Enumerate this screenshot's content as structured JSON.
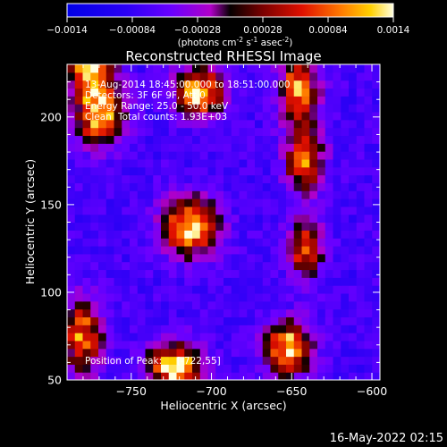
{
  "colorbar": {
    "ticks": [
      "-0.0014",
      "-0.00084",
      "-0.00028",
      "0.00028",
      "0.00084",
      "0.0014"
    ],
    "unit_pre": "(photons cm",
    "unit_exp1": "-2",
    "unit_mid": " s",
    "unit_exp2": "-1",
    "unit_mid2": " asec",
    "unit_exp3": "-2",
    "unit_post": ")"
  },
  "title": "Reconstructed RHESSI Image",
  "annotations": {
    "line1": "13-Aug-2014 18:45:00.000 to 18:51:00.000",
    "line2": "Detectors: 3F 6F 9F, Att 0",
    "line3": "Energy Range: 25.0 - 50.0 keV",
    "line4_label": "Clean",
    "line4_value": "Total counts: 1.93E+03",
    "peak_label": "Position of Peak:",
    "peak_value": "[-722,55]"
  },
  "timestamp": "16-May-2022 02:15",
  "chart_data": {
    "type": "heatmap",
    "title": "Reconstructed RHESSI Image",
    "xlabel": "Heliocentric X (arcsec)",
    "ylabel": "Heliocentric Y (arcsec)",
    "xlim": [
      -790,
      -595
    ],
    "ylim": [
      50,
      230
    ],
    "xticks": [
      -750,
      -700,
      -650,
      -600
    ],
    "yticks": [
      50,
      100,
      150,
      200
    ],
    "xtick_labels": [
      "−750",
      "−700",
      "−650",
      "−600"
    ],
    "ytick_labels": [
      "50",
      "100",
      "150",
      "200"
    ],
    "colorbar_range": [
      -0.0014,
      0.0014
    ],
    "peak_position": [
      -722,
      55
    ],
    "sources": [
      {
        "x": -770,
        "y": 205,
        "sx": 10,
        "sy": 13,
        "amp": 0.00135
      },
      {
        "x": -777,
        "y": 235,
        "sx": 9,
        "sy": 12,
        "amp": 0.0012
      },
      {
        "x": -780,
        "y": 75,
        "sx": 8,
        "sy": 14,
        "amp": 0.00105
      },
      {
        "x": -708,
        "y": 215,
        "sx": 10,
        "sy": 9,
        "amp": 0.00135
      },
      {
        "x": -713,
        "y": 138,
        "sx": 12,
        "sy": 11,
        "amp": 0.00125
      },
      {
        "x": -723,
        "y": 58,
        "sx": 11,
        "sy": 9,
        "amp": 0.0014
      },
      {
        "x": -645,
        "y": 215,
        "sx": 8,
        "sy": 14,
        "amp": 0.0011
      },
      {
        "x": -642,
        "y": 175,
        "sx": 8,
        "sy": 12,
        "amp": 0.00105
      },
      {
        "x": -641,
        "y": 125,
        "sx": 7,
        "sy": 12,
        "amp": 0.00095
      },
      {
        "x": -652,
        "y": 68,
        "sx": 10,
        "sy": 10,
        "amp": 0.00125
      }
    ]
  }
}
